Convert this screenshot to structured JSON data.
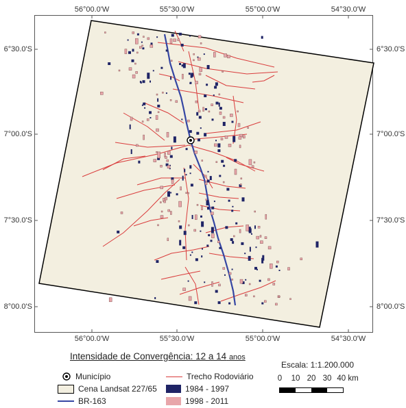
{
  "map": {
    "top_labels": [
      "56°00.0'W",
      "55°30.0'W",
      "55°00.0'W",
      "54°30.0'W"
    ],
    "bottom_labels": [
      "56°00.0'W",
      "55°30.0'W",
      "55°00.0'W",
      "54°30.0'W"
    ],
    "left_labels": [
      "6°30.0'S",
      "7°00.0'S",
      "7°30.0'S",
      "8°00.0'S"
    ],
    "right_labels": [
      "6°30.0'S",
      "7°00.0'S",
      "7°30.0'S",
      "8°00.0'S"
    ]
  },
  "legend": {
    "title": "Intensidade de Convergência: 12 a 14",
    "title_suffix": "anos",
    "items": {
      "municipio": "Município",
      "landsat": "Cena Landsat 227/65",
      "br163": "BR-163",
      "trecho": "Trecho Rodoviário",
      "period1": "1984 - 1997",
      "period2": "1998 - 2011"
    }
  },
  "scale": {
    "title": "Escala: 1:1.200.000",
    "ticks": [
      "0",
      "10",
      "20",
      "30",
      "40 km"
    ]
  },
  "colors": {
    "scene_fill": "#f3efe0",
    "road": "#d93b3b",
    "br163": "#3546a3",
    "period1": "#1f2466",
    "period2": "#e8a6aa"
  }
}
